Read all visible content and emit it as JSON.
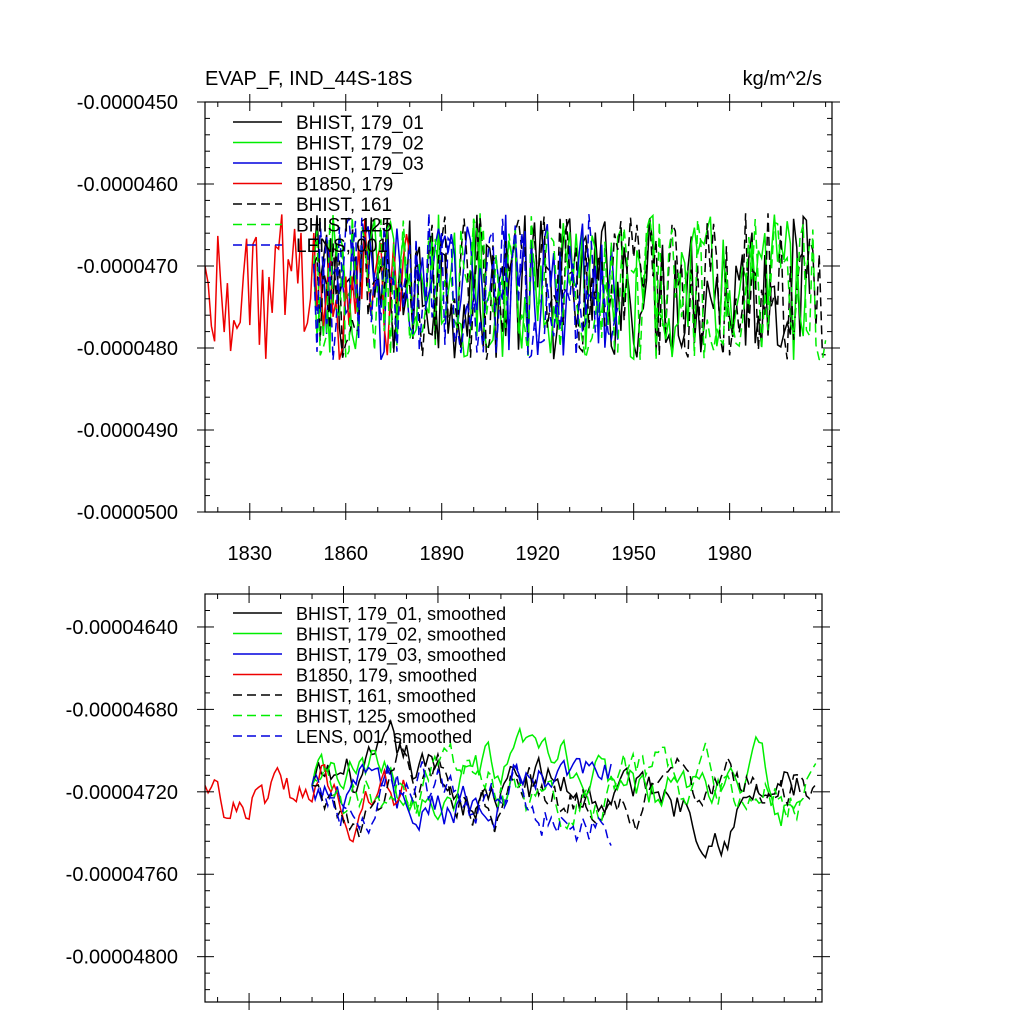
{
  "chart_data": [
    {
      "type": "line",
      "title_left": "EVAP_F, IND_44S-18S",
      "title_right": "kg/m^2/s",
      "xlim": [
        1816,
        2012
      ],
      "ylim": [
        -5e-05,
        -4.5e-05
      ],
      "x_ticks": [
        1830,
        1860,
        1890,
        1920,
        1950,
        1980
      ],
      "x_tick_labels": [
        "1830",
        "1860",
        "1890",
        "1920",
        "1950",
        "1980"
      ],
      "y_ticks": [
        -4.5e-05,
        -4.6e-05,
        -4.7e-05,
        -4.8e-05,
        -4.9e-05,
        -5e-05
      ],
      "y_tick_labels": [
        "-0.0000450",
        "-0.0000460",
        "-0.0000470",
        "-0.0000480",
        "-0.0000490",
        "-0.0000500"
      ],
      "legend_position": "top-left",
      "series": [
        {
          "name": "BHIST, 179_01",
          "color": "#000000",
          "dash": "solid"
        },
        {
          "name": "BHIST, 179_02",
          "color": "#00ee00",
          "dash": "solid"
        },
        {
          "name": "BHIST, 179_03",
          "color": "#0000dd",
          "dash": "solid"
        },
        {
          "name": "B1850, 179",
          "color": "#ee0000",
          "dash": "solid"
        },
        {
          "name": "BHIST, 161",
          "color": "#000000",
          "dash": "dashed"
        },
        {
          "name": "BHIST, 125",
          "color": "#00ee00",
          "dash": "dashed"
        },
        {
          "name": "LENS, 001",
          "color": "#0000dd",
          "dash": "dashed"
        }
      ]
    },
    {
      "type": "line",
      "xlim": [
        1816,
        2012
      ],
      "ylim": [
        -4.822e-05,
        -4.624e-05
      ],
      "x_ticks": [
        1830,
        1860,
        1890,
        1920,
        1950,
        1980
      ],
      "y_ticks": [
        -4.64e-05,
        -4.68e-05,
        -4.72e-05,
        -4.76e-05,
        -4.8e-05
      ],
      "y_tick_labels": [
        "-0.00004640",
        "-0.00004680",
        "-0.00004720",
        "-0.00004760",
        "-0.00004800"
      ],
      "legend_position": "top-left",
      "series": [
        {
          "name": "BHIST, 179_01, smoothed",
          "color": "#000000",
          "dash": "solid"
        },
        {
          "name": "BHIST, 179_02, smoothed",
          "color": "#00ee00",
          "dash": "solid"
        },
        {
          "name": "BHIST, 179_03, smoothed",
          "color": "#0000dd",
          "dash": "solid"
        },
        {
          "name": "B1850, 179, smoothed",
          "color": "#ee0000",
          "dash": "solid"
        },
        {
          "name": "BHIST, 161, smoothed",
          "color": "#000000",
          "dash": "dashed"
        },
        {
          "name": "BHIST, 125, smoothed",
          "color": "#00ee00",
          "dash": "dashed"
        },
        {
          "name": "LENS, 001, smoothed",
          "color": "#0000dd",
          "dash": "dashed"
        }
      ]
    }
  ]
}
